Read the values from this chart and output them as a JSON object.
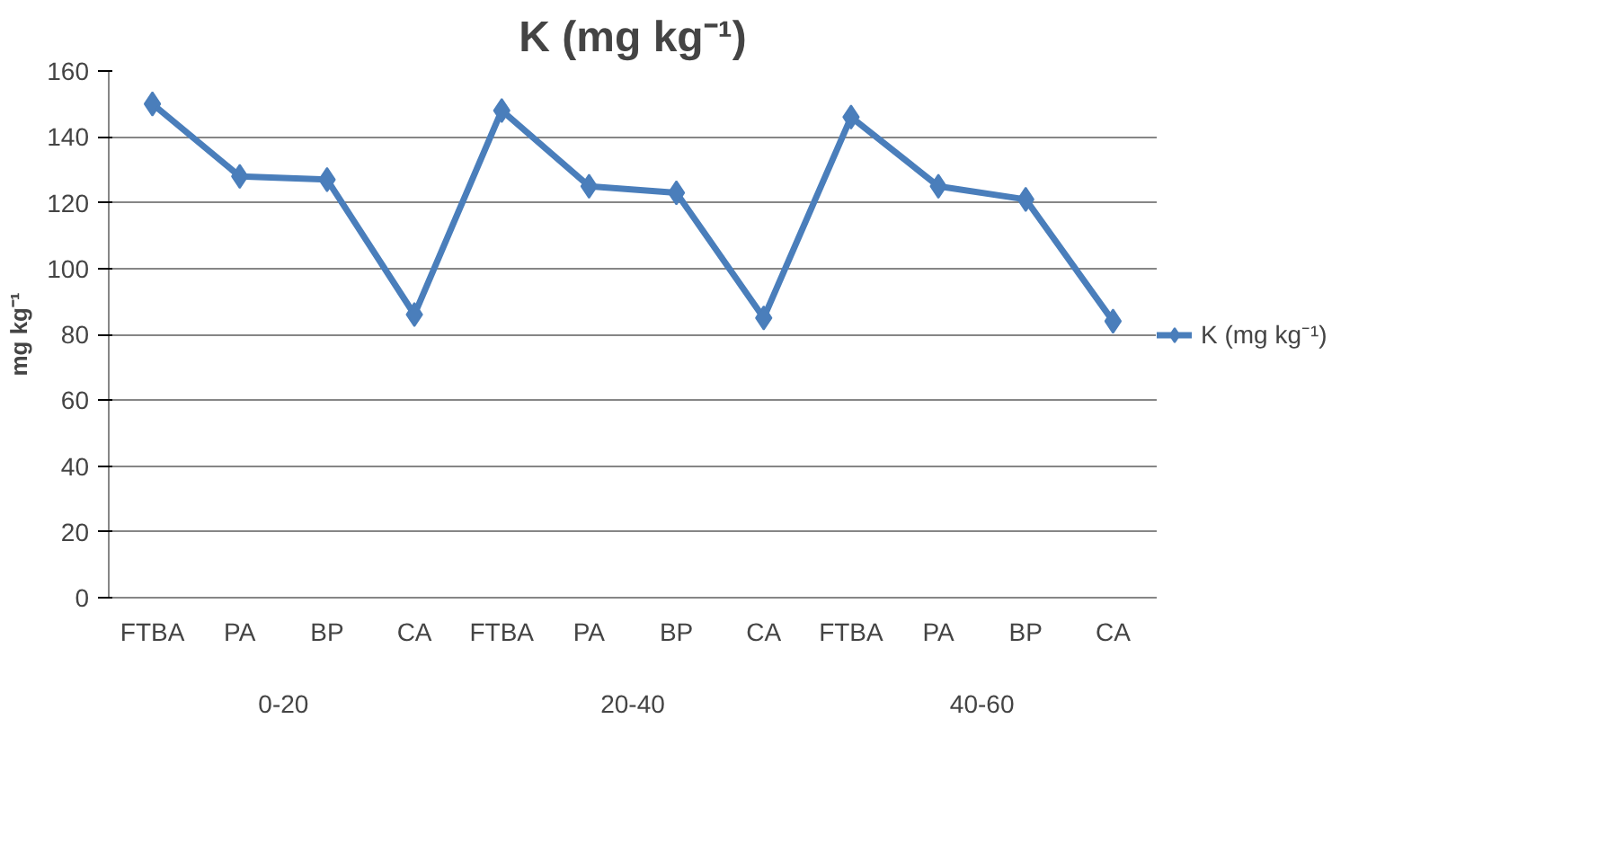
{
  "chart_data": {
    "type": "line",
    "title": "K (mg kg⁻¹)",
    "ylabel": "mg kg⁻¹",
    "categories": [
      "FTBA",
      "PA",
      "BP",
      "CA",
      "FTBA",
      "PA",
      "BP",
      "CA",
      "FTBA",
      "PA",
      "BP",
      "CA"
    ],
    "annotations": [
      "0-20",
      "20-40",
      "40-60"
    ],
    "series": [
      {
        "name": "K (mg kg⁻¹)",
        "color": "#4a7ebb",
        "values": [
          150,
          128,
          127,
          86,
          148,
          125,
          123,
          85,
          146,
          125,
          121,
          84
        ]
      }
    ],
    "ylim": [
      0,
      160
    ],
    "yticks": [
      0,
      20,
      40,
      60,
      80,
      100,
      120,
      140,
      160
    ],
    "grid": "y",
    "legend": "right",
    "marker": "diamond",
    "line_style": "solid"
  }
}
